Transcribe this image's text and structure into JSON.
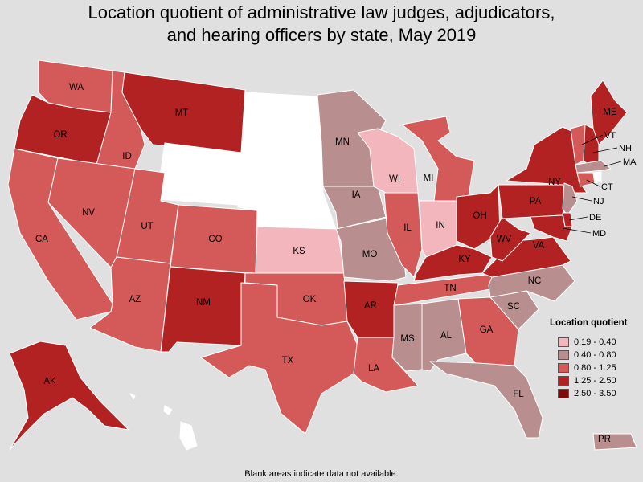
{
  "title": {
    "line1": "Location quotient of administrative law judges, adjudicators,",
    "line2": "and hearing officers by state, May 2019"
  },
  "legend": {
    "title": "Location quotient",
    "items": [
      {
        "label": "0.19 - 0.40",
        "color": "#f4b6bd"
      },
      {
        "label": "0.40 - 0.80",
        "color": "#b98e8e"
      },
      {
        "label": "0.80 - 1.25",
        "color": "#d45a5a"
      },
      {
        "label": "1.25 - 2.50",
        "color": "#b32222"
      },
      {
        "label": "2.50 - 3.50",
        "color": "#7f0a0a"
      }
    ]
  },
  "footnote": "Blank areas indicate data not available.",
  "colors": {
    "no_data": "#ffffff",
    "background": "#e0e0e0"
  },
  "chart_data": {
    "type": "choropleth",
    "categories": [
      "0.19 - 0.40",
      "0.40 - 0.80",
      "0.80 - 1.25",
      "1.25 - 2.50",
      "2.50 - 3.50"
    ],
    "states": [
      {
        "abbr": "WA",
        "class": 2
      },
      {
        "abbr": "OR",
        "class": 3
      },
      {
        "abbr": "CA",
        "class": 2
      },
      {
        "abbr": "ID",
        "class": 2
      },
      {
        "abbr": "NV",
        "class": 2
      },
      {
        "abbr": "MT",
        "class": 3
      },
      {
        "abbr": "WY",
        "class": null
      },
      {
        "abbr": "UT",
        "class": 2
      },
      {
        "abbr": "AZ",
        "class": 2
      },
      {
        "abbr": "CO",
        "class": 2
      },
      {
        "abbr": "NM",
        "class": 3
      },
      {
        "abbr": "ND",
        "class": null
      },
      {
        "abbr": "SD",
        "class": null
      },
      {
        "abbr": "NE",
        "class": null
      },
      {
        "abbr": "KS",
        "class": 0
      },
      {
        "abbr": "OK",
        "class": 2
      },
      {
        "abbr": "TX",
        "class": 2
      },
      {
        "abbr": "MN",
        "class": 1
      },
      {
        "abbr": "IA",
        "class": 1
      },
      {
        "abbr": "MO",
        "class": 1
      },
      {
        "abbr": "AR",
        "class": 3
      },
      {
        "abbr": "LA",
        "class": 2
      },
      {
        "abbr": "WI",
        "class": 0
      },
      {
        "abbr": "IL",
        "class": 2
      },
      {
        "abbr": "MI",
        "class": 2
      },
      {
        "abbr": "IN",
        "class": 0
      },
      {
        "abbr": "OH",
        "class": 3
      },
      {
        "abbr": "KY",
        "class": 3
      },
      {
        "abbr": "TN",
        "class": 2
      },
      {
        "abbr": "MS",
        "class": 1
      },
      {
        "abbr": "AL",
        "class": 1
      },
      {
        "abbr": "GA",
        "class": 2
      },
      {
        "abbr": "FL",
        "class": 1
      },
      {
        "abbr": "SC",
        "class": 1
      },
      {
        "abbr": "NC",
        "class": 1
      },
      {
        "abbr": "VA",
        "class": 3
      },
      {
        "abbr": "WV",
        "class": 3
      },
      {
        "abbr": "PA",
        "class": 3
      },
      {
        "abbr": "NY",
        "class": 3
      },
      {
        "abbr": "ME",
        "class": 3
      },
      {
        "abbr": "VT",
        "class": 2
      },
      {
        "abbr": "NH",
        "class": 3
      },
      {
        "abbr": "MA",
        "class": 1
      },
      {
        "abbr": "CT",
        "class": 2
      },
      {
        "abbr": "RI",
        "class": null
      },
      {
        "abbr": "NJ",
        "class": 1
      },
      {
        "abbr": "DE",
        "class": 3
      },
      {
        "abbr": "MD",
        "class": 3
      },
      {
        "abbr": "AK",
        "class": 3
      },
      {
        "abbr": "HI",
        "class": null
      },
      {
        "abbr": "PR",
        "class": 1
      }
    ]
  }
}
